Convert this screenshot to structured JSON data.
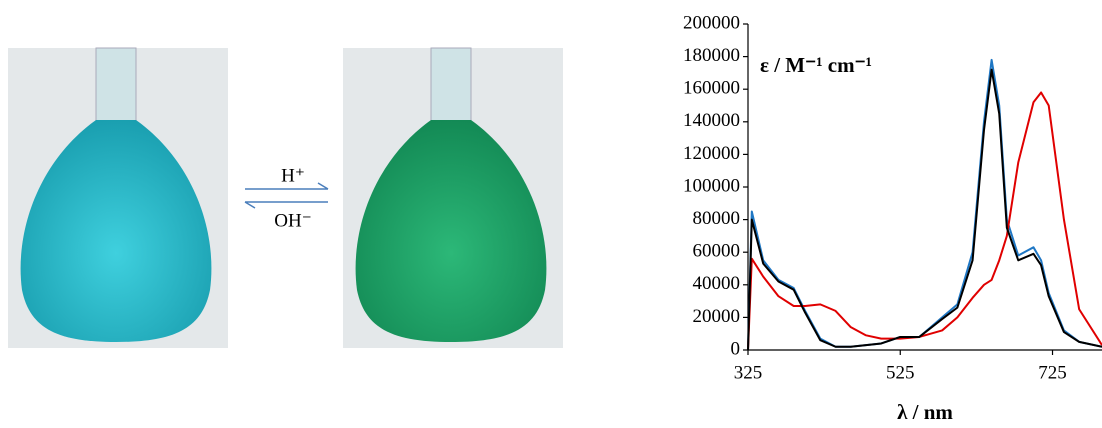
{
  "scheme": {
    "forward": "H⁺",
    "reverse": "OH⁻"
  },
  "chart_data": {
    "type": "line",
    "y_label": "ε / M⁻¹ cm⁻¹",
    "x_label": "λ / nm",
    "x": [
      325,
      330,
      345,
      365,
      385,
      400,
      420,
      440,
      460,
      480,
      500,
      525,
      550,
      580,
      600,
      620,
      635,
      645,
      655,
      665,
      680,
      700,
      710,
      720,
      740,
      760,
      790
    ],
    "series": [
      {
        "color": "#1f77c4",
        "values": [
          0,
          85000,
          55000,
          43000,
          38000,
          24000,
          7000,
          2000,
          2000,
          3000,
          4000,
          8000,
          8000,
          20000,
          28000,
          60000,
          140000,
          178000,
          150000,
          80000,
          58000,
          63000,
          55000,
          35000,
          12000,
          5000,
          2000
        ]
      },
      {
        "color": "#e00000",
        "values": [
          0,
          56000,
          45000,
          33000,
          27000,
          27000,
          28000,
          24000,
          14000,
          9000,
          7000,
          7000,
          8000,
          12000,
          20000,
          32000,
          40000,
          43000,
          55000,
          70000,
          115000,
          152000,
          158000,
          150000,
          80000,
          25000,
          3000
        ]
      },
      {
        "color": "#000000",
        "values": [
          0,
          80000,
          53000,
          42000,
          37000,
          23000,
          6000,
          2000,
          2000,
          3000,
          4000,
          8000,
          8000,
          19000,
          26000,
          55000,
          135000,
          172000,
          145000,
          75000,
          55000,
          59000,
          52000,
          33000,
          11000,
          5000,
          2000
        ]
      }
    ],
    "xlim": [
      325,
      790
    ],
    "xticks": [
      325,
      525,
      725
    ],
    "ylim": [
      0,
      200000
    ],
    "yticks": [
      0,
      20000,
      40000,
      60000,
      80000,
      100000,
      120000,
      140000,
      160000,
      180000,
      200000
    ]
  }
}
